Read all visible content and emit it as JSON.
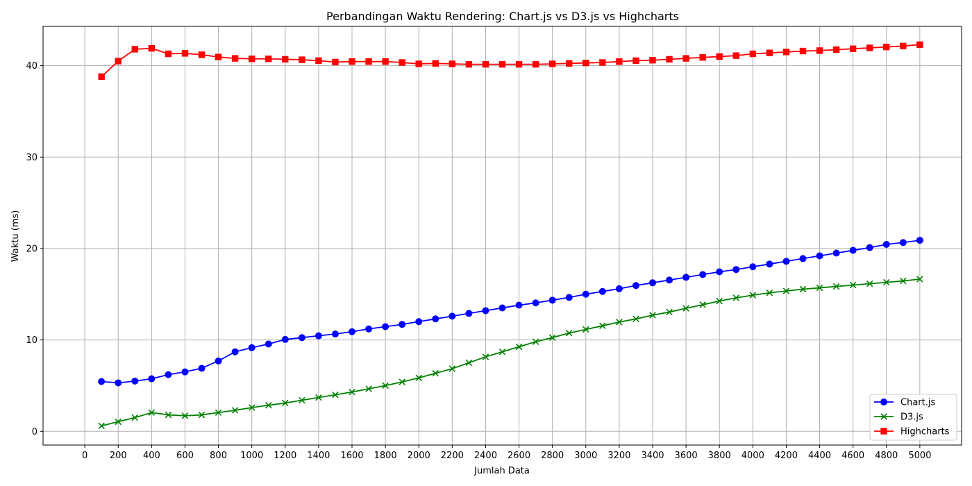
{
  "chart_data": {
    "type": "line",
    "title": "Perbandingan Waktu Rendering: Chart.js vs D3.js vs Highcharts",
    "xlabel": "Jumlah Data",
    "ylabel": "Waktu (ms)",
    "xlim": [
      -250,
      5250
    ],
    "ylim": [
      -1.5,
      44.3
    ],
    "xticks": [
      0,
      200,
      400,
      600,
      800,
      1000,
      1200,
      1400,
      1600,
      1800,
      2000,
      2200,
      2400,
      2600,
      2800,
      3000,
      3200,
      3400,
      3600,
      3800,
      4000,
      4200,
      4400,
      4600,
      4800,
      5000
    ],
    "yticks": [
      0,
      10,
      20,
      30,
      40
    ],
    "grid": true,
    "legend_position": "bottom-right",
    "x": [
      100,
      200,
      300,
      400,
      500,
      600,
      700,
      800,
      900,
      1000,
      1100,
      1200,
      1300,
      1400,
      1500,
      1600,
      1700,
      1800,
      1900,
      2000,
      2100,
      2200,
      2300,
      2400,
      2500,
      2600,
      2700,
      2800,
      2900,
      3000,
      3100,
      3200,
      3300,
      3400,
      3500,
      3600,
      3700,
      3800,
      3900,
      4000,
      4100,
      4200,
      4300,
      4400,
      4500,
      4600,
      4700,
      4800,
      4900,
      5000
    ],
    "series": [
      {
        "name": "Chart.js",
        "color": "#0000ff",
        "marker": "circle",
        "values": [
          5.45,
          5.3,
          5.5,
          5.75,
          6.2,
          6.5,
          6.9,
          7.7,
          8.7,
          9.15,
          9.55,
          10.05,
          10.25,
          10.45,
          10.65,
          10.9,
          11.2,
          11.45,
          11.7,
          12.0,
          12.3,
          12.6,
          12.9,
          13.2,
          13.5,
          13.8,
          14.05,
          14.35,
          14.65,
          15.0,
          15.3,
          15.6,
          15.95,
          16.25,
          16.55,
          16.85,
          17.15,
          17.45,
          17.7,
          18.0,
          18.3,
          18.6,
          18.9,
          19.2,
          19.5,
          19.8,
          20.1,
          20.45,
          20.65,
          20.9
        ]
      },
      {
        "name": "D3.js",
        "color": "#008000",
        "marker": "x",
        "values": [
          0.6,
          1.05,
          1.5,
          2.05,
          1.8,
          1.7,
          1.8,
          2.05,
          2.3,
          2.6,
          2.85,
          3.1,
          3.4,
          3.7,
          4.0,
          4.3,
          4.65,
          5.0,
          5.4,
          5.85,
          6.35,
          6.85,
          7.5,
          8.15,
          8.7,
          9.25,
          9.8,
          10.25,
          10.75,
          11.15,
          11.55,
          11.95,
          12.3,
          12.7,
          13.05,
          13.45,
          13.85,
          14.25,
          14.6,
          14.9,
          15.15,
          15.35,
          15.55,
          15.7,
          15.85,
          16.0,
          16.15,
          16.3,
          16.45,
          16.65
        ]
      },
      {
        "name": "Highcharts",
        "color": "#ff0000",
        "marker": "square",
        "values": [
          38.8,
          40.5,
          41.8,
          41.9,
          41.3,
          41.35,
          41.2,
          40.95,
          40.8,
          40.75,
          40.75,
          40.7,
          40.65,
          40.55,
          40.4,
          40.45,
          40.45,
          40.45,
          40.35,
          40.2,
          40.25,
          40.2,
          40.15,
          40.15,
          40.15,
          40.15,
          40.15,
          40.2,
          40.25,
          40.3,
          40.35,
          40.45,
          40.55,
          40.6,
          40.7,
          40.8,
          40.9,
          41.0,
          41.1,
          41.3,
          41.4,
          41.5,
          41.6,
          41.65,
          41.75,
          41.85,
          41.95,
          42.05,
          42.15,
          42.3
        ]
      }
    ]
  }
}
